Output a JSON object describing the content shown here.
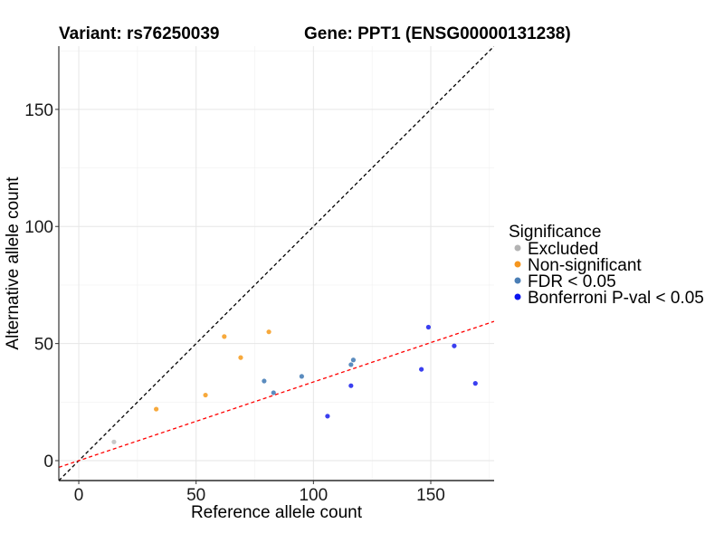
{
  "chart_data": {
    "type": "scatter",
    "title_left": "Variant: rs76250039",
    "title_right": "Gene: PPT1 (ENSG00000131238)",
    "xlabel": "Reference allele count",
    "ylabel": "Alternative allele count",
    "xlim": [
      -8.5,
      177
    ],
    "ylim": [
      -8.5,
      177
    ],
    "x_ticks": [
      0,
      50,
      100,
      150
    ],
    "y_ticks": [
      0,
      50,
      100,
      150
    ],
    "x_tick_labels": [
      "0",
      "50",
      "100",
      "150"
    ],
    "y_tick_labels": [
      "0",
      "50",
      "100",
      "150"
    ],
    "minor_ticks": [
      25,
      75,
      125,
      175
    ],
    "grid": true,
    "reference_lines": [
      {
        "name": "identity",
        "slope": 1,
        "intercept": 0,
        "color": "#000000",
        "style": "dashed"
      },
      {
        "name": "fit",
        "slope": 0.336,
        "intercept": 0,
        "color": "#ff0000",
        "style": "dashed"
      }
    ],
    "legend": {
      "title": "Significance",
      "position": "right",
      "entries": [
        {
          "label": "Excluded",
          "color": "#b3b3b3"
        },
        {
          "label": "Non-significant",
          "color": "#f5961e"
        },
        {
          "label": "FDR < 0.05",
          "color": "#4a7eb5"
        },
        {
          "label": "Bonferroni P-val < 0.05",
          "color": "#0a14f0"
        }
      ]
    },
    "series": [
      {
        "name": "Excluded",
        "color": "#c8c8c8",
        "points": [
          [
            15,
            8
          ]
        ]
      },
      {
        "name": "Non-significant",
        "color": "#f7a93c",
        "points": [
          [
            33,
            22
          ],
          [
            54,
            28
          ],
          [
            62,
            53
          ],
          [
            69,
            44
          ],
          [
            81,
            55
          ]
        ]
      },
      {
        "name": "FDR < 0.05",
        "color": "#5b8cbf",
        "points": [
          [
            79,
            34
          ],
          [
            83,
            29
          ],
          [
            95,
            36
          ],
          [
            116,
            41
          ],
          [
            117,
            43
          ]
        ]
      },
      {
        "name": "Bonferroni P-val < 0.05",
        "color": "#3a3ff0",
        "points": [
          [
            106,
            19
          ],
          [
            116,
            32
          ],
          [
            146,
            39
          ],
          [
            149,
            57
          ],
          [
            160,
            49
          ],
          [
            169,
            33
          ]
        ]
      }
    ]
  }
}
